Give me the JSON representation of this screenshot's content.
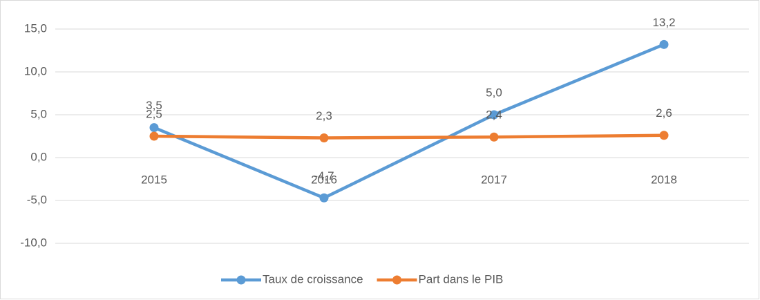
{
  "chart_data": {
    "type": "line",
    "categories": [
      "2015",
      "2016",
      "2017",
      "2018"
    ],
    "series": [
      {
        "name": "Taux de croissance",
        "color": "#5b9bd5",
        "values": [
          3.5,
          -4.7,
          5.0,
          13.2
        ],
        "value_labels": [
          "3,5",
          "-4,7",
          "5,0",
          "13,2"
        ]
      },
      {
        "name": "Part dans le PIB",
        "color": "#ed7d31",
        "values": [
          2.5,
          2.3,
          2.4,
          2.6
        ],
        "value_labels": [
          "2,5",
          "2,3",
          "2,4",
          "2,6"
        ]
      }
    ],
    "ylim": [
      -10,
      15
    ],
    "yticks": [
      {
        "value": -10,
        "label": "-10,0"
      },
      {
        "value": -5,
        "label": "-5,0"
      },
      {
        "value": 0,
        "label": "0,0"
      },
      {
        "value": 5,
        "label": "5,0"
      },
      {
        "value": 10,
        "label": "10,0"
      },
      {
        "value": 15,
        "label": "15,0"
      }
    ],
    "grid": true,
    "legend": "bottom"
  }
}
